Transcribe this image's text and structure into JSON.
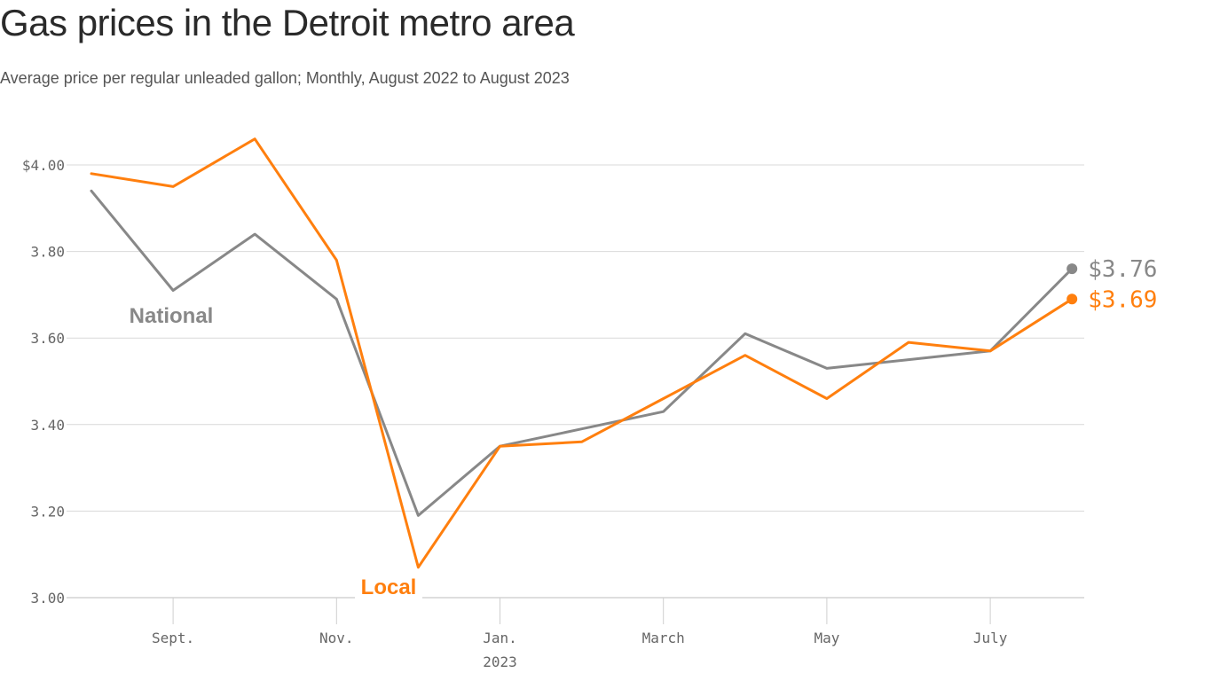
{
  "title": "Gas prices in the Detroit metro area",
  "subtitle": "Average price per regular unleaded gallon; Monthly, August 2022 to August 2023",
  "colors": {
    "national": "#888888",
    "local": "#ff7f0e",
    "grid": "#d9d9d9",
    "axis": "#666666"
  },
  "chart_data": {
    "type": "line",
    "title": "Gas prices in the Detroit metro area",
    "subtitle": "Average price per regular unleaded gallon; Monthly, August 2022 to August 2023",
    "x": [
      "2022-08",
      "2022-09",
      "2022-10",
      "2022-11",
      "2022-12",
      "2023-01",
      "2023-02",
      "2023-03",
      "2023-04",
      "2023-05",
      "2023-06",
      "2023-07",
      "2023-08"
    ],
    "series": [
      {
        "name": "National",
        "values": [
          3.94,
          3.71,
          3.84,
          3.69,
          3.19,
          3.35,
          3.39,
          3.43,
          3.61,
          3.53,
          3.55,
          3.57,
          3.76
        ],
        "end_label": "$3.76"
      },
      {
        "name": "Local",
        "values": [
          3.98,
          3.95,
          4.06,
          3.78,
          3.07,
          3.35,
          3.36,
          3.46,
          3.56,
          3.46,
          3.59,
          3.57,
          3.69
        ],
        "end_label": "$3.69"
      }
    ],
    "ylim": [
      3.0,
      4.0
    ],
    "yticks": [
      {
        "value": 4.0,
        "label": "$4.00"
      },
      {
        "value": 3.8,
        "label": "3.80"
      },
      {
        "value": 3.6,
        "label": "3.60"
      },
      {
        "value": 3.4,
        "label": "3.40"
      },
      {
        "value": 3.2,
        "label": "3.20"
      },
      {
        "value": 3.0,
        "label": "3.00"
      }
    ],
    "xticks": [
      {
        "index": 1,
        "label": "Sept."
      },
      {
        "index": 3,
        "label": "Nov."
      },
      {
        "index": 5,
        "label": "Jan.",
        "sublabel": "2023"
      },
      {
        "index": 7,
        "label": "March"
      },
      {
        "index": 9,
        "label": "May"
      },
      {
        "index": 11,
        "label": "July"
      }
    ],
    "grid": true,
    "legend": "direct labels on lines"
  }
}
